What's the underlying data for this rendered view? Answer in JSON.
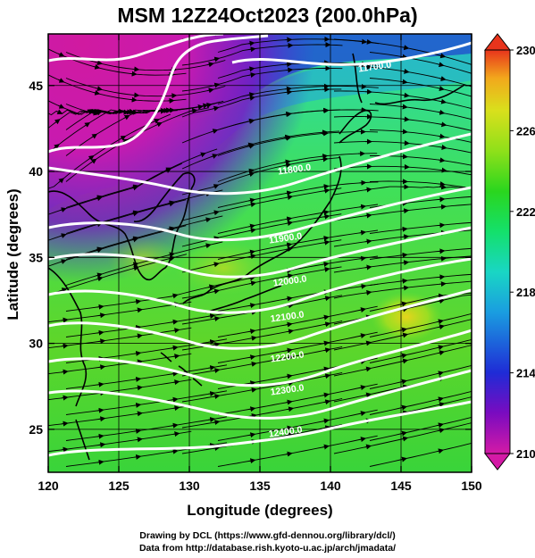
{
  "title": "MSM 12Z24Oct2023 (200.0hPa)",
  "axes": {
    "xlabel": "Longitude (degrees)",
    "ylabel": "Latitude  (degrees)",
    "x_ticks": [
      "120",
      "125",
      "130",
      "135",
      "140",
      "145",
      "150"
    ],
    "y_ticks": [
      "25",
      "30",
      "35",
      "40",
      "45"
    ]
  },
  "colorbar": {
    "labels": [
      "230",
      "226",
      "222",
      "218",
      "214",
      "210"
    ],
    "min": 210,
    "max": 230,
    "extend": "both",
    "colors": [
      "#d41aa6",
      "#7a0bc0",
      "#1f2bd6",
      "#1a9de0",
      "#19d6c4",
      "#14e06b",
      "#2ad61e",
      "#8fe01a",
      "#d9e01c",
      "#f2a81c",
      "#e8341c"
    ]
  },
  "contours": [
    {
      "label": "11700.0"
    },
    {
      "label": "11800.0"
    },
    {
      "label": "11900.0"
    },
    {
      "label": "12000.0"
    },
    {
      "label": "12100.0"
    },
    {
      "label": "12200.0"
    },
    {
      "label": "12300.0"
    },
    {
      "label": "12400.0"
    }
  ],
  "footer": {
    "line1": "Drawing by DCL (https://www.gfd-dennou.org/library/dcl/)",
    "line2": "Data from http://database.rish.kyoto-u.ac.jp/arch/jmadata/"
  }
}
